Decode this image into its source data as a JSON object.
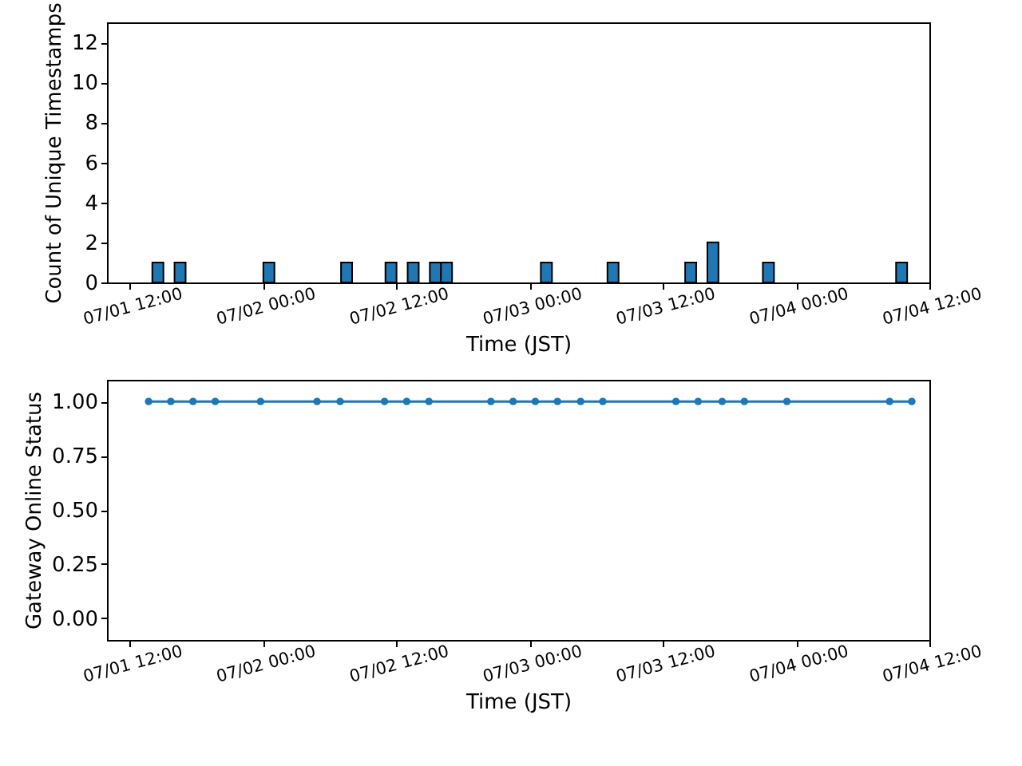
{
  "chart_data": [
    {
      "type": "bar",
      "xlabel": "Time (JST)",
      "ylabel": "Count of Unique Timestamps",
      "color": "#1f77b4",
      "x": [
        "--07-01T14:30",
        "--07-01T16:30",
        "--07-02T00:30",
        "--07-02T07:30",
        "--07-02T11:30",
        "--07-02T13:30",
        "--07-02T15:30",
        "--07-02T16:30",
        "--07-03T01:30",
        "--07-03T07:30",
        "--07-03T14:30",
        "--07-03T16:30",
        "--07-03T21:30",
        "--07-04T09:30"
      ],
      "values": [
        1,
        1,
        1,
        1,
        1,
        1,
        1,
        1,
        1,
        1,
        1,
        2,
        1,
        1
      ],
      "xlim": [
        "--07-01T09:55",
        "--07-04T12:00"
      ],
      "xticks": [
        {
          "value": "--07-01T12:00",
          "label": "07/01 12:00"
        },
        {
          "value": "--07-02T00:00",
          "label": "07/02 00:00"
        },
        {
          "value": "--07-02T12:00",
          "label": "07/02 12:00"
        },
        {
          "value": "--07-03T00:00",
          "label": "07/03 00:00"
        },
        {
          "value": "--07-03T12:00",
          "label": "07/03 12:00"
        },
        {
          "value": "--07-04T00:00",
          "label": "07/04 00:00"
        },
        {
          "value": "--07-04T12:00",
          "label": "07/04 12:00"
        }
      ],
      "ylim": [
        0,
        13
      ],
      "yticks": [
        0,
        2,
        4,
        6,
        8,
        10,
        12
      ]
    },
    {
      "type": "line",
      "xlabel": "Time (JST)",
      "ylabel": "Gateway Online Status",
      "color": "#1f77b4",
      "marker": "circle",
      "x": [
        "--07-01T13:40",
        "--07-01T15:40",
        "--07-01T17:40",
        "--07-01T19:40",
        "--07-01T23:45",
        "--07-02T04:50",
        "--07-02T06:55",
        "--07-02T10:55",
        "--07-02T12:55",
        "--07-02T14:55",
        "--07-02T20:30",
        "--07-02T22:30",
        "--07-03T00:30",
        "--07-03T02:30",
        "--07-03T04:35",
        "--07-03T06:35",
        "--07-03T13:10",
        "--07-03T15:10",
        "--07-03T17:20",
        "--07-03T19:20",
        "--07-03T23:10",
        "--07-04T08:25",
        "--07-04T10:25"
      ],
      "values": [
        1,
        1,
        1,
        1,
        1,
        1,
        1,
        1,
        1,
        1,
        1,
        1,
        1,
        1,
        1,
        1,
        1,
        1,
        1,
        1,
        1,
        1,
        1
      ],
      "xlim": [
        "--07-01T09:55",
        "--07-04T12:00"
      ],
      "xticks": [
        {
          "value": "--07-01T12:00",
          "label": "07/01 12:00"
        },
        {
          "value": "--07-02T00:00",
          "label": "07/02 00:00"
        },
        {
          "value": "--07-02T12:00",
          "label": "07/02 12:00"
        },
        {
          "value": "--07-03T00:00",
          "label": "07/03 00:00"
        },
        {
          "value": "--07-03T12:00",
          "label": "07/03 12:00"
        },
        {
          "value": "--07-04T00:00",
          "label": "07/04 00:00"
        },
        {
          "value": "--07-04T12:00",
          "label": "07/04 12:00"
        }
      ],
      "ylim": [
        -0.1,
        1.1
      ],
      "yticks": [
        {
          "value": 0,
          "label": "0.00"
        },
        {
          "value": 0.25,
          "label": "0.25"
        },
        {
          "value": 0.5,
          "label": "0.50"
        },
        {
          "value": 0.75,
          "label": "0.75"
        },
        {
          "value": 1,
          "label": "1.00"
        }
      ]
    }
  ]
}
